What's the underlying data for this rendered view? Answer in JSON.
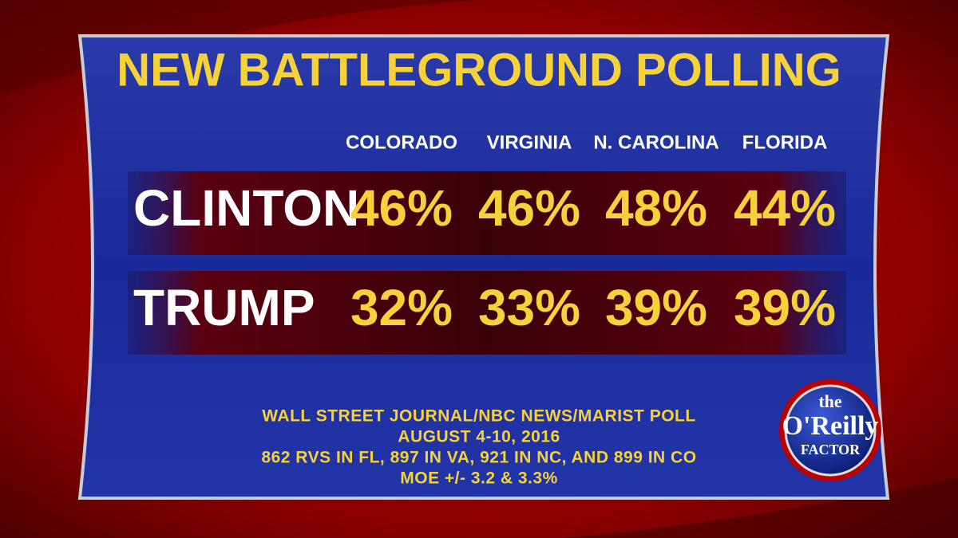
{
  "title": "NEW BATTLEGROUND POLLING",
  "table": {
    "columns": [
      "COLORADO",
      "VIRGINIA",
      "N. CAROLINA",
      "FLORIDA"
    ],
    "rows": [
      {
        "name": "CLINTON",
        "values": [
          "46%",
          "46%",
          "48%",
          "44%"
        ]
      },
      {
        "name": "TRUMP",
        "values": [
          "32%",
          "33%",
          "39%",
          "39%"
        ]
      }
    ]
  },
  "footer": [
    "WALL STREET JOURNAL/NBC NEWS/MARIST POLL",
    "AUGUST 4-10, 2016",
    "862 RVS IN FL, 897 IN VA, 921 IN NC, AND 899 IN CO",
    "MOE +/- 3.2 & 3.3%"
  ],
  "logo": {
    "top": "the",
    "middle": "O'Reilly",
    "bottom": "FACTOR"
  }
}
